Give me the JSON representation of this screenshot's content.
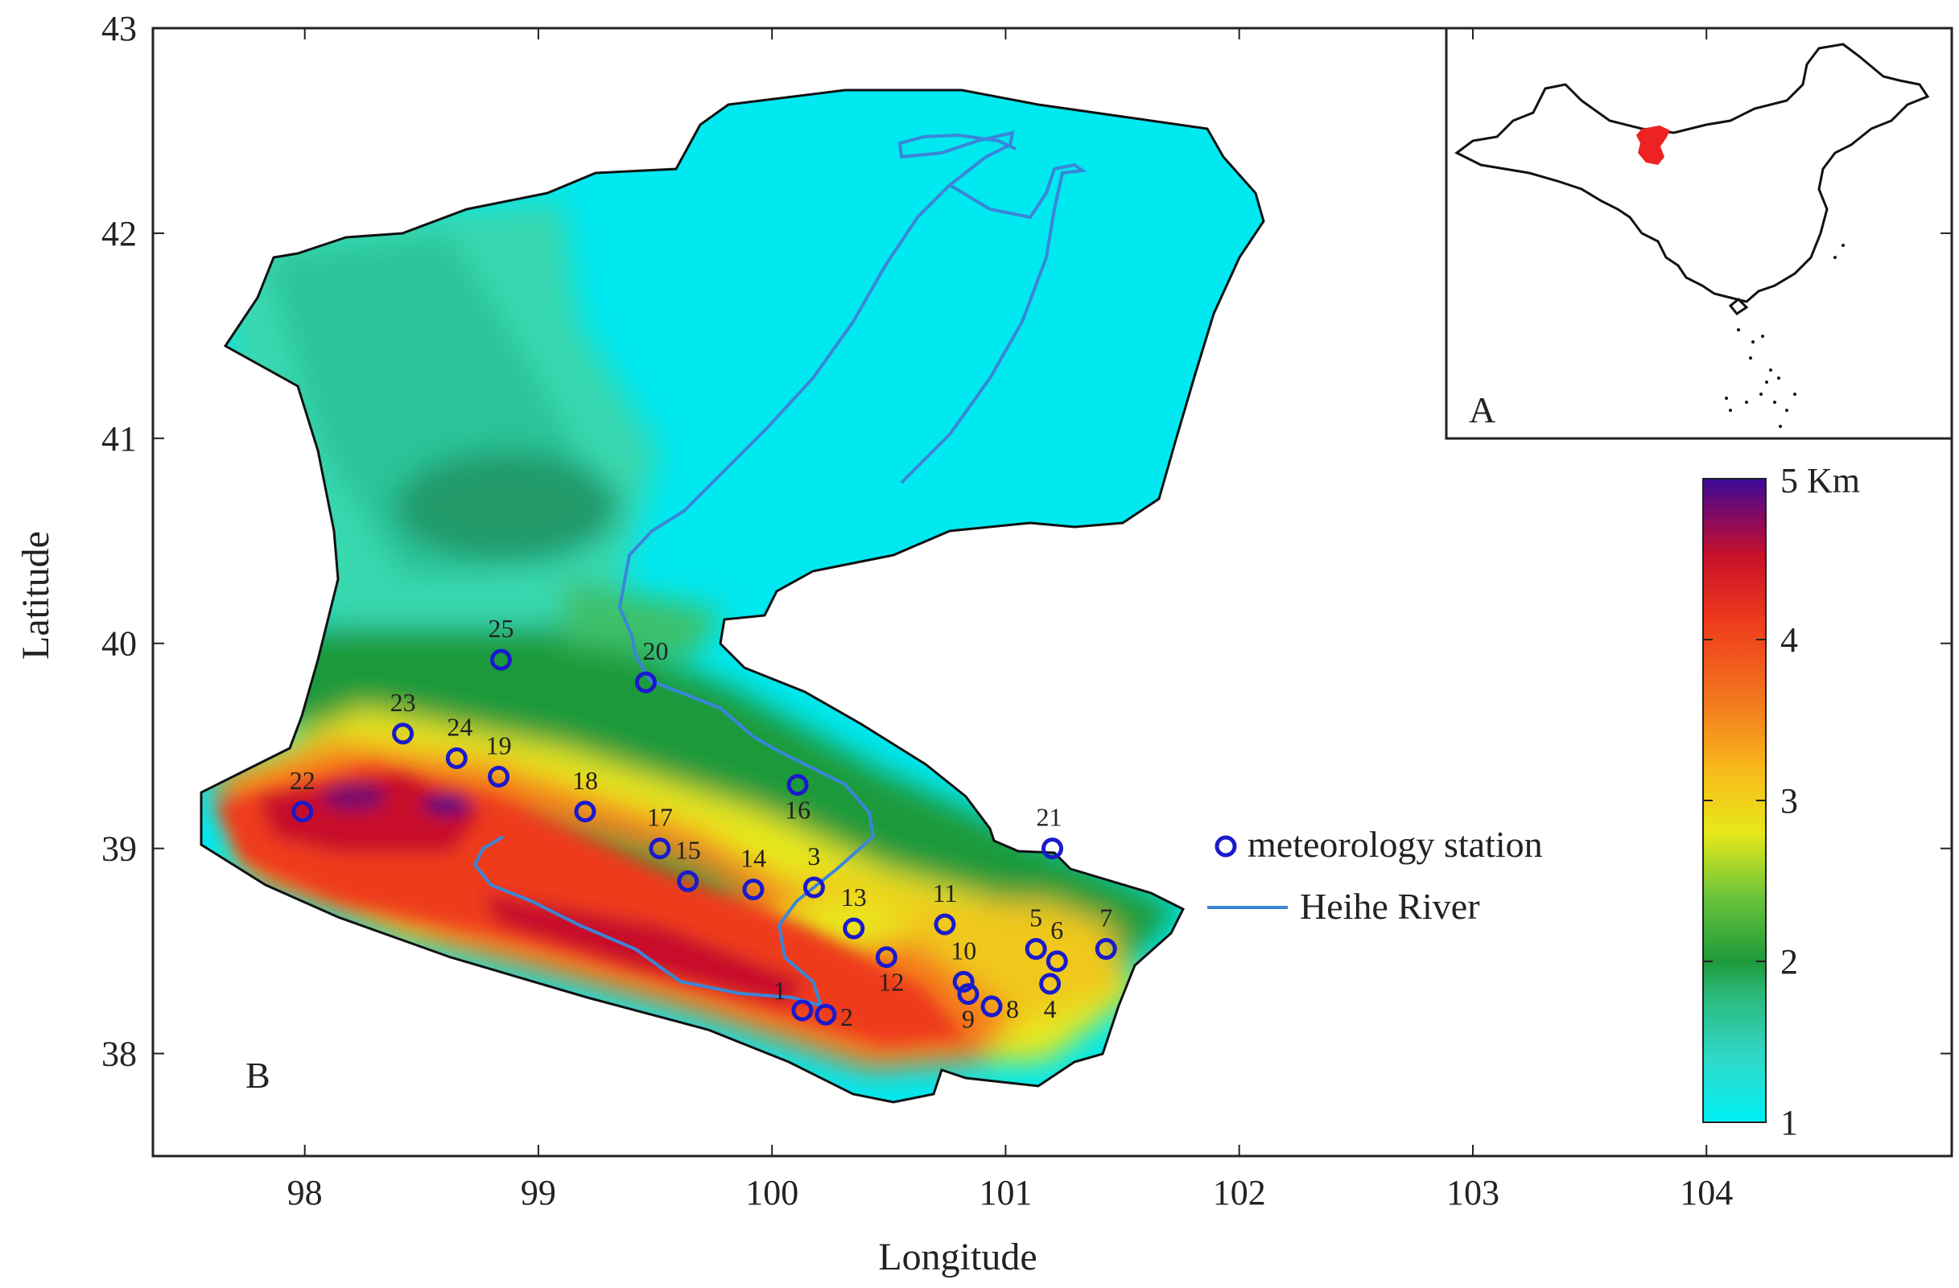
{
  "axes": {
    "xlabel": "Longitude",
    "ylabel": "Latitude",
    "xlim": [
      97.35,
      105.05
    ],
    "ylim": [
      37.5,
      43.0
    ],
    "xticks": [
      "98",
      "99",
      "100",
      "101",
      "102",
      "103",
      "104"
    ],
    "yticks": [
      "38",
      "39",
      "40",
      "41",
      "42",
      "43"
    ]
  },
  "panel_labels": {
    "main": "B",
    "inset": "A"
  },
  "legend": {
    "station": "meteorology station",
    "river": "Heihe River"
  },
  "colorbar": {
    "title": "5 Km",
    "ticks": [
      "1",
      "2",
      "3",
      "4"
    ],
    "range": [
      1,
      5
    ],
    "colors": [
      "#00e8f0",
      "#38d8b8",
      "#2ab060",
      "#1e9a3a",
      "#7cc83a",
      "#e8e81a",
      "#f7b81a",
      "#f47a1e",
      "#ee3a1c",
      "#c8102a",
      "#7a0a6a",
      "#3a0a9a"
    ]
  },
  "colors": {
    "river": "#3a86d8",
    "station": "#1a1acc",
    "outline": "#111111",
    "region_highlight": "#ee2222"
  },
  "stations": [
    {
      "id": "1",
      "lon": 100.13,
      "lat": 38.21
    },
    {
      "id": "2",
      "lon": 100.23,
      "lat": 38.19
    },
    {
      "id": "3",
      "lon": 100.18,
      "lat": 38.81
    },
    {
      "id": "4",
      "lon": 101.19,
      "lat": 38.34
    },
    {
      "id": "5",
      "lon": 101.13,
      "lat": 38.51
    },
    {
      "id": "6",
      "lon": 101.22,
      "lat": 38.45
    },
    {
      "id": "7",
      "lon": 101.43,
      "lat": 38.51
    },
    {
      "id": "8",
      "lon": 100.94,
      "lat": 38.23
    },
    {
      "id": "9",
      "lon": 100.84,
      "lat": 38.29
    },
    {
      "id": "10",
      "lon": 100.82,
      "lat": 38.35
    },
    {
      "id": "11",
      "lon": 100.74,
      "lat": 38.63
    },
    {
      "id": "12",
      "lon": 100.49,
      "lat": 38.47
    },
    {
      "id": "13",
      "lon": 100.35,
      "lat": 38.61
    },
    {
      "id": "14",
      "lon": 99.92,
      "lat": 38.8
    },
    {
      "id": "15",
      "lon": 99.64,
      "lat": 38.84
    },
    {
      "id": "16",
      "lon": 100.11,
      "lat": 39.31
    },
    {
      "id": "17",
      "lon": 99.52,
      "lat": 39.0
    },
    {
      "id": "18",
      "lon": 99.2,
      "lat": 39.18
    },
    {
      "id": "19",
      "lon": 98.83,
      "lat": 39.35
    },
    {
      "id": "20",
      "lon": 99.46,
      "lat": 39.81
    },
    {
      "id": "21",
      "lon": 101.2,
      "lat": 39.0
    },
    {
      "id": "22",
      "lon": 97.99,
      "lat": 39.18
    },
    {
      "id": "23",
      "lon": 98.42,
      "lat": 39.56
    },
    {
      "id": "24",
      "lon": 98.65,
      "lat": 39.44
    },
    {
      "id": "25",
      "lon": 98.84,
      "lat": 39.92
    }
  ]
}
